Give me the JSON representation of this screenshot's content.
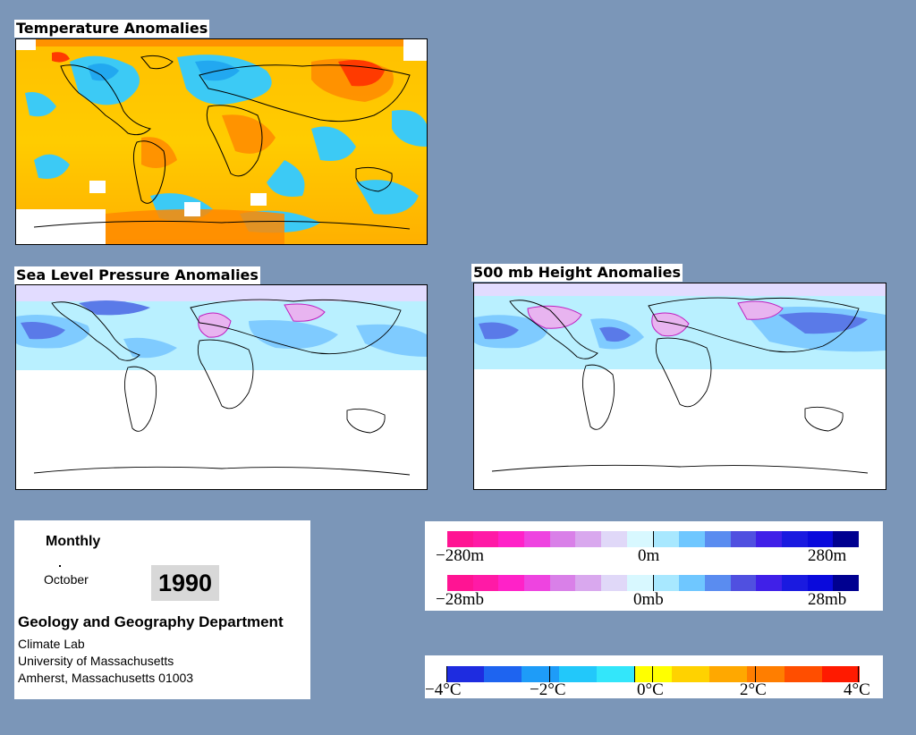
{
  "panels": {
    "temperature": {
      "title": "Temperature Anomalies"
    },
    "slp": {
      "title": "Sea Level Pressure Anomalies"
    },
    "height500": {
      "title": "500 mb Height Anomalies"
    }
  },
  "info": {
    "period": "Monthly",
    "month": "October",
    "year": "1990",
    "department": "Geology and Geography Department",
    "lines": [
      "Climate Lab",
      "University of Massachusetts",
      "Amherst, Massachusetts 01003"
    ]
  },
  "legends": {
    "height": {
      "left": "−280m",
      "mid": "0m",
      "right": "280m"
    },
    "pressure": {
      "left": "−28mb",
      "mid": "0mb",
      "right": "28mb"
    },
    "temperature": {
      "labels": [
        "−4°C",
        "−2°C",
        "0°C",
        "2°C",
        "4°C"
      ]
    },
    "anomaly_colors": [
      "#ff1493",
      "#ff1aa6",
      "#ff22c8",
      "#ee44e0",
      "#d980e8",
      "#d9a8ee",
      "#e0d8f8",
      "#d8f8ff",
      "#a8e8ff",
      "#6fc7ff",
      "#5a8cf0",
      "#5050e0",
      "#4020e8",
      "#1a1ae0",
      "#0a0adc",
      "#000090"
    ],
    "temp_colors": [
      "#1e2ce0",
      "#1e64f0",
      "#1e9cf8",
      "#22c8fa",
      "#33e6fa",
      "#ffff00",
      "#ffd200",
      "#ffa800",
      "#ff7e00",
      "#ff4e00",
      "#ff1a00"
    ]
  }
}
